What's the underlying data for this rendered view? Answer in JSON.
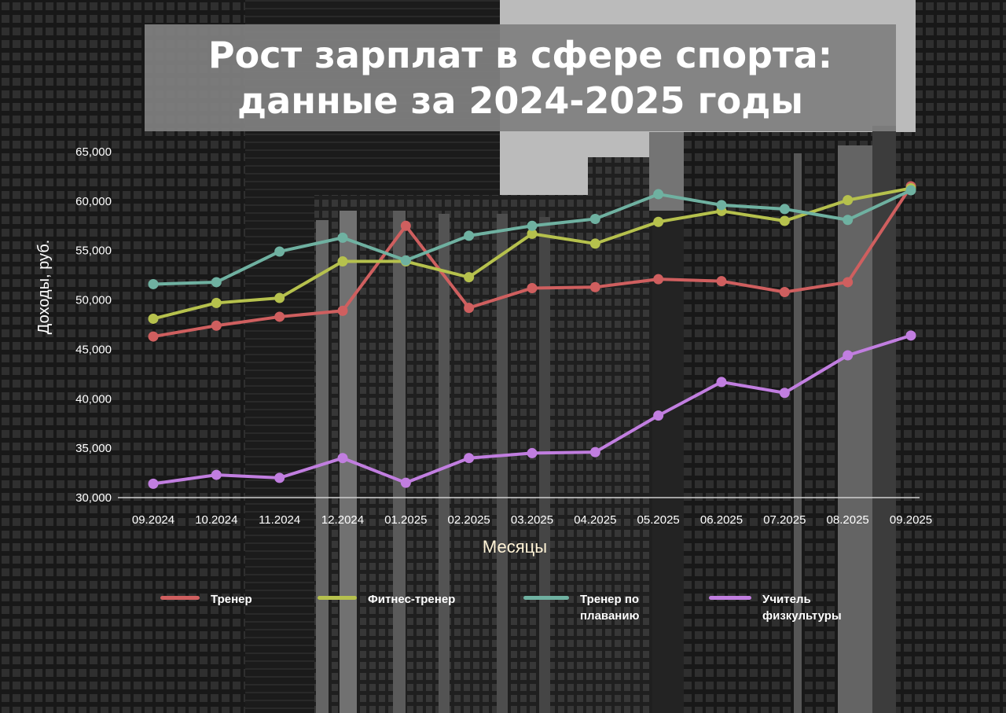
{
  "title": {
    "line1": "Рост зарплат в сфере спорта:",
    "line2": "данные за 2024-2025 годы"
  },
  "chart_data": {
    "type": "line",
    "title": "Рост зарплат в сфере спорта: данные за 2024-2025 годы",
    "xlabel": "Месяцы",
    "ylabel": "Доходы, руб.",
    "ylim": [
      30000,
      65000
    ],
    "yticks": [
      "30,000",
      "35,000",
      "40,000",
      "45,000",
      "50,000",
      "55,000",
      "60,000",
      "65,000"
    ],
    "grid": false,
    "legend": "bottom",
    "categories": [
      "09.2024",
      "10.2024",
      "11.2024",
      "12.2024",
      "01.2025",
      "02.2025",
      "03.2025",
      "04.2025",
      "05.2025",
      "06.2025",
      "07.2025",
      "08.2025",
      "09.2025"
    ],
    "series": [
      {
        "name": "Тренер",
        "color": "#cf5f5f",
        "values": [
          46300,
          47400,
          48300,
          48900,
          57500,
          49200,
          51200,
          51300,
          52100,
          51900,
          50800,
          51800,
          61500
        ]
      },
      {
        "name": "Фитнес-тренер",
        "color": "#b6c14d",
        "values": [
          48100,
          49700,
          50200,
          53900,
          53900,
          52300,
          56700,
          55700,
          57900,
          59000,
          58000,
          60100,
          61300
        ]
      },
      {
        "name": "Тренер по плаванию",
        "color": "#6fb1a1",
        "values": [
          51600,
          51800,
          54900,
          56300,
          54000,
          56500,
          57500,
          58200,
          60700,
          59600,
          59200,
          58100,
          61100
        ]
      },
      {
        "name": "Учитель физкультуры",
        "color": "#c17ee0",
        "values": [
          31400,
          32300,
          32000,
          34000,
          31500,
          34000,
          34500,
          34600,
          38300,
          41700,
          40600,
          44400,
          46400
        ]
      }
    ]
  },
  "legend": [
    {
      "line1": "Тренер",
      "line2": "",
      "color": "#cf5f5f"
    },
    {
      "line1": "Фитнес-тренер",
      "line2": "",
      "color": "#b6c14d"
    },
    {
      "line1": "Тренер по",
      "line2": "плаванию",
      "color": "#6fb1a1"
    },
    {
      "line1": "Учитель",
      "line2": "физкультуры",
      "color": "#c17ee0"
    }
  ]
}
